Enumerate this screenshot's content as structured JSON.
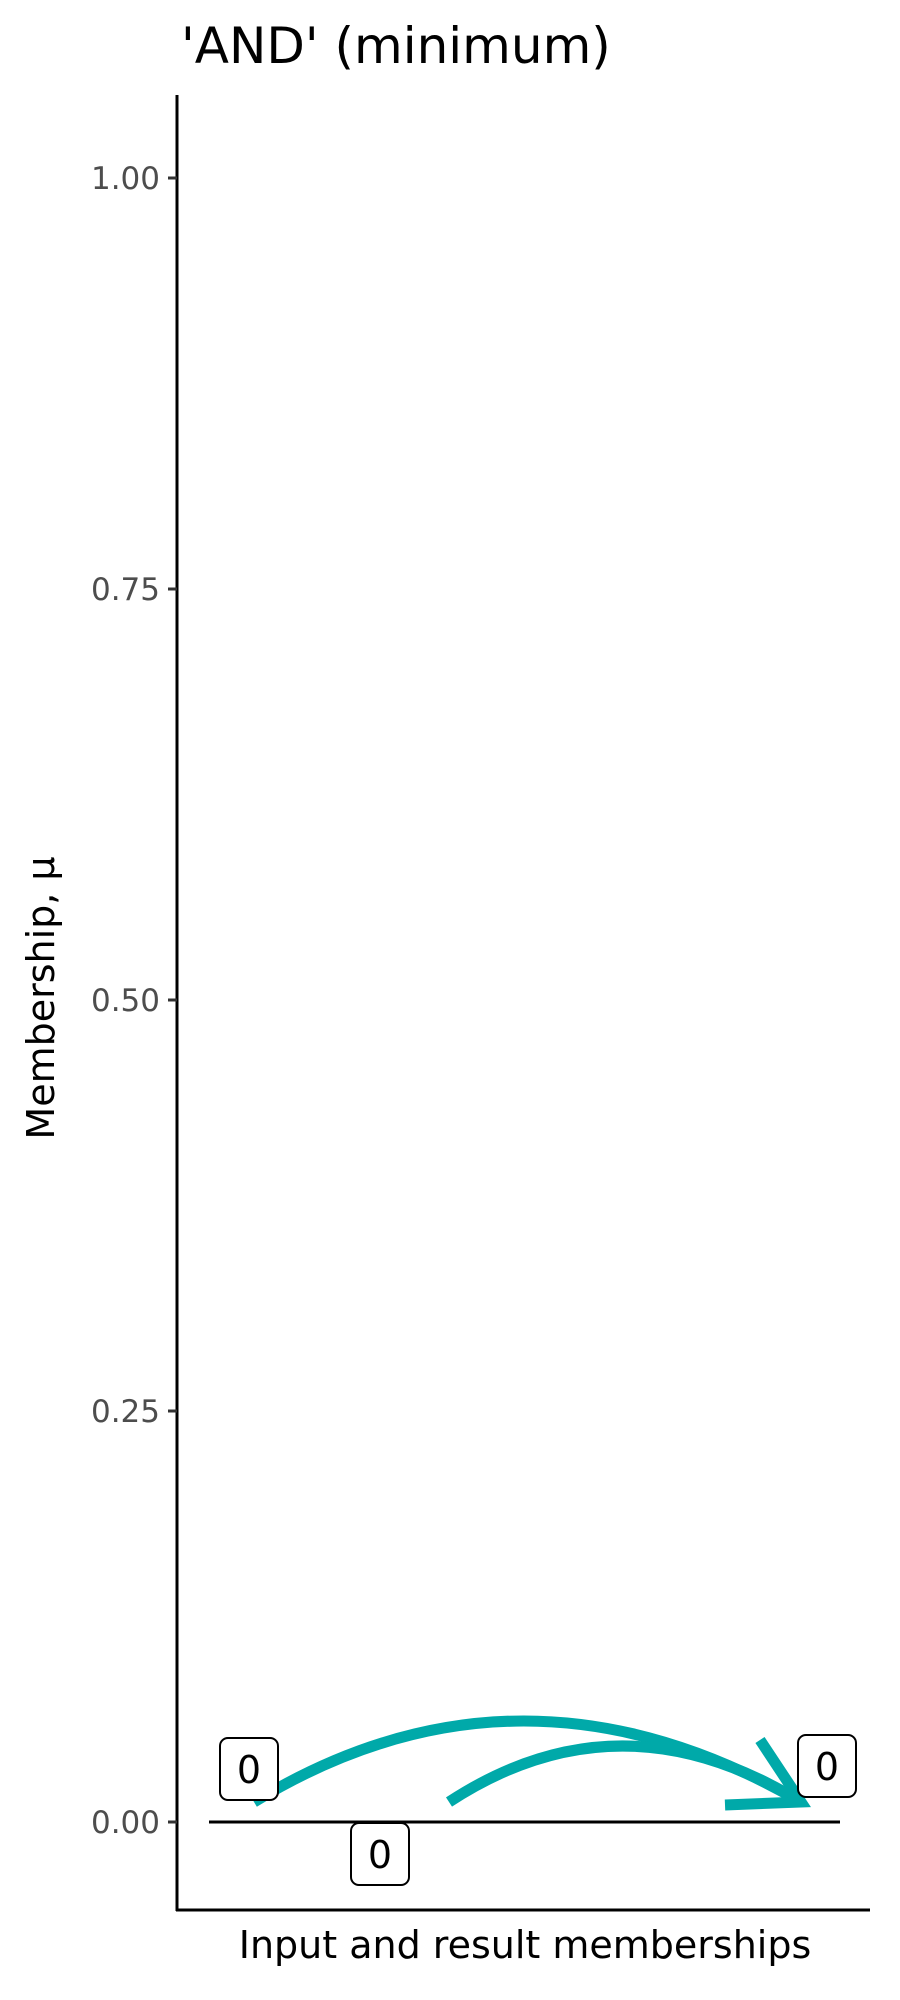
{
  "chart_data": {
    "type": "line",
    "title": "'AND' (minimum)",
    "xlabel": "Input and result memberships",
    "ylabel": "Membership, μ",
    "ylim": [
      -0.05,
      1.05
    ],
    "yticks": [
      "0.00",
      "0.25",
      "0.50",
      "0.75",
      "1.00"
    ],
    "ytick_values": [
      0,
      0.25,
      0.5,
      0.75,
      1
    ],
    "grid": false,
    "reference_line": {
      "y": 0
    },
    "labels": [
      {
        "text": "0",
        "value": 0,
        "role": "input 1"
      },
      {
        "text": "0",
        "value": 0,
        "role": "input 2"
      },
      {
        "text": "0",
        "value": 0,
        "role": "result"
      }
    ],
    "arrows": [
      {
        "from": "input 1",
        "to": "result",
        "value": 0
      },
      {
        "from": "input 2",
        "to": "result",
        "value": 0
      }
    ],
    "colors": {
      "arrow": "#00A9A9",
      "axis": "#000000",
      "tick_text": "#4d4d4d"
    }
  }
}
